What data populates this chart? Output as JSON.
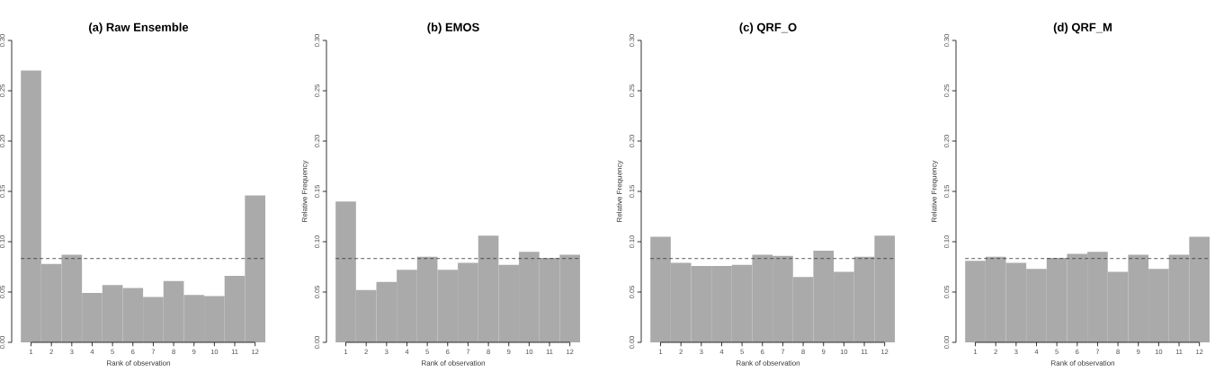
{
  "chart_data": [
    {
      "type": "bar",
      "title": "(a) Raw Ensemble",
      "xlabel": "Rank of observation",
      "categories": [
        "1",
        "2",
        "3",
        "4",
        "5",
        "6",
        "7",
        "8",
        "9",
        "10",
        "11",
        "12"
      ],
      "values": [
        0.27,
        0.078,
        0.087,
        0.049,
        0.057,
        0.054,
        0.045,
        0.061,
        0.047,
        0.046,
        0.066,
        0.146
      ],
      "color": "#aaaaaa",
      "ylim": [
        0,
        0.3
      ],
      "yticks": [
        {
          "value": 0,
          "label": "0.00"
        },
        {
          "value": 0.05,
          "label": "0.05"
        },
        {
          "value": 0.1,
          "label": "0.10"
        },
        {
          "value": 0.15,
          "label": "0.15"
        },
        {
          "value": 0.2,
          "label": "0.20"
        },
        {
          "value": 0.25,
          "label": "0.25"
        },
        {
          "value": 0.3,
          "label": "0.30"
        }
      ],
      "ref_lines": [
        {
          "axis": "y",
          "value": 0.0833,
          "line_style": "dashed",
          "color": "#333333"
        }
      ]
    },
    {
      "type": "bar",
      "title": "(b) EMOS",
      "xlabel": "Rank of observation",
      "ylabel": "Relative Frequency",
      "categories": [
        "1",
        "2",
        "3",
        "4",
        "5",
        "6",
        "7",
        "8",
        "9",
        "10",
        "11",
        "12"
      ],
      "values": [
        0.14,
        0.052,
        0.06,
        0.072,
        0.085,
        0.072,
        0.079,
        0.106,
        0.077,
        0.09,
        0.084,
        0.087
      ],
      "color": "#aaaaaa",
      "ylim": [
        0,
        0.3
      ],
      "yticks": [
        {
          "value": 0,
          "label": "0.00"
        },
        {
          "value": 0.05,
          "label": "0.05"
        },
        {
          "value": 0.1,
          "label": "0.10"
        },
        {
          "value": 0.15,
          "label": "0.15"
        },
        {
          "value": 0.2,
          "label": "0.20"
        },
        {
          "value": 0.25,
          "label": "0.25"
        },
        {
          "value": 0.3,
          "label": "0.30"
        }
      ],
      "ref_lines": [
        {
          "axis": "y",
          "value": 0.0833,
          "line_style": "dashed",
          "color": "#333333"
        }
      ]
    },
    {
      "type": "bar",
      "title": "(c) QRF_O",
      "xlabel": "Rank of observation",
      "ylabel": "Relative Frequency",
      "categories": [
        "1",
        "2",
        "3",
        "4",
        "5",
        "6",
        "7",
        "8",
        "9",
        "10",
        "11",
        "12"
      ],
      "values": [
        0.105,
        0.079,
        0.076,
        0.076,
        0.077,
        0.087,
        0.086,
        0.065,
        0.091,
        0.07,
        0.085,
        0.106
      ],
      "color": "#aaaaaa",
      "ylim": [
        0,
        0.3
      ],
      "yticks": [
        {
          "value": 0,
          "label": "0.00"
        },
        {
          "value": 0.05,
          "label": "0.05"
        },
        {
          "value": 0.1,
          "label": "0.10"
        },
        {
          "value": 0.15,
          "label": "0.15"
        },
        {
          "value": 0.2,
          "label": "0.20"
        },
        {
          "value": 0.25,
          "label": "0.25"
        },
        {
          "value": 0.3,
          "label": "0.30"
        }
      ],
      "ref_lines": [
        {
          "axis": "y",
          "value": 0.0833,
          "line_style": "dashed",
          "color": "#333333"
        }
      ]
    },
    {
      "type": "bar",
      "title": "(d) QRF_M",
      "xlabel": "Rank of observation",
      "ylabel": "Relative Frequency",
      "categories": [
        "1",
        "2",
        "3",
        "4",
        "5",
        "6",
        "7",
        "8",
        "9",
        "10",
        "11",
        "12"
      ],
      "values": [
        0.081,
        0.085,
        0.079,
        0.073,
        0.084,
        0.088,
        0.09,
        0.07,
        0.087,
        0.073,
        0.087,
        0.105
      ],
      "color": "#aaaaaa",
      "ylim": [
        0,
        0.3
      ],
      "yticks": [
        {
          "value": 0,
          "label": "0.00"
        },
        {
          "value": 0.05,
          "label": "0.05"
        },
        {
          "value": 0.1,
          "label": "0.10"
        },
        {
          "value": 0.15,
          "label": "0.15"
        },
        {
          "value": 0.2,
          "label": "0.20"
        },
        {
          "value": 0.25,
          "label": "0.25"
        },
        {
          "value": 0.3,
          "label": "0.30"
        }
      ],
      "ref_lines": [
        {
          "axis": "y",
          "value": 0.0833,
          "line_style": "dashed",
          "color": "#333333"
        }
      ]
    }
  ]
}
